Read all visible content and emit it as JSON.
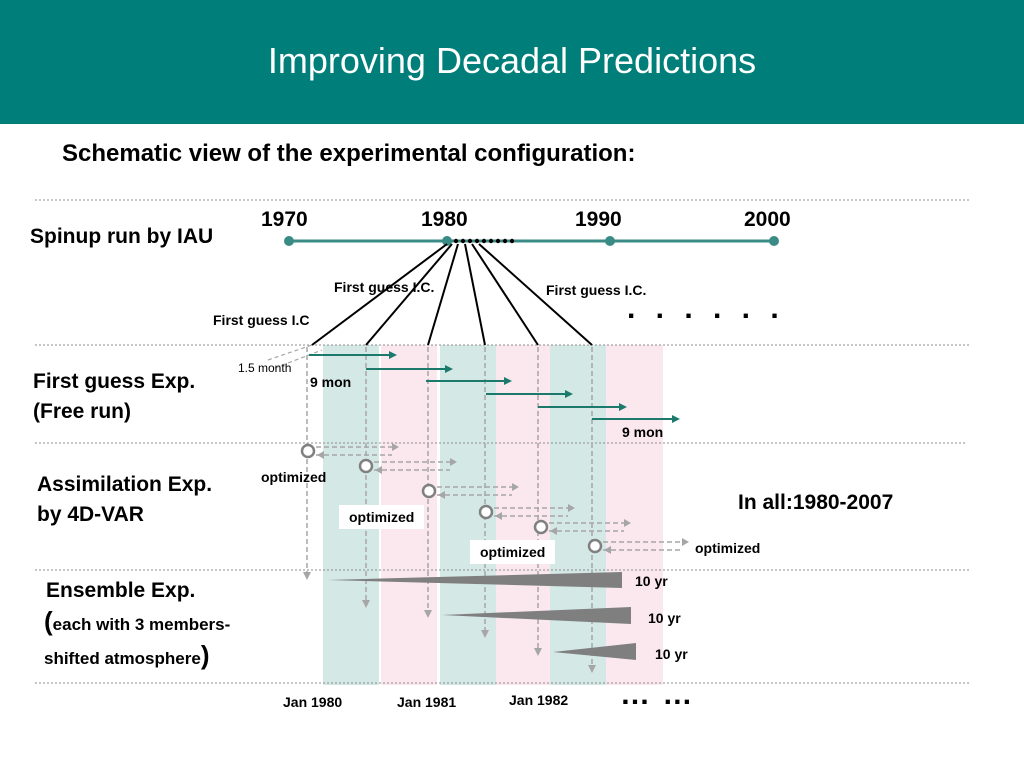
{
  "header": {
    "title": "Improving Decadal Predictions"
  },
  "subtitle": "Schematic view of the experimental configuration:",
  "spinup": {
    "label": "Spinup run by IAU",
    "years": [
      "1970",
      "1980",
      "1990",
      "2000"
    ],
    "first_guess_labels": [
      "First guess I.C.",
      "First guess I.C.",
      "First guess I.C"
    ]
  },
  "rows": {
    "first_guess_line1": "First guess Exp.",
    "first_guess_line2": "(Free run)",
    "assim_line1": "Assimilation Exp.",
    "assim_line2": "by 4D-VAR",
    "ensemble_line1": "Ensemble Exp.",
    "ensemble_line2_open": "(",
    "ensemble_line2": "each with 3 members-",
    "ensemble_line3": "shifted atmosphere",
    "ensemble_line3_close": ")"
  },
  "annotations": {
    "offset": "1.5 month",
    "duration_a": "9 mon",
    "duration_b": "9 mon",
    "optimized": [
      "optimized",
      "optimized",
      "optimized",
      "optimized"
    ],
    "in_all": "In all:1980-2007",
    "ensemble_lengths": [
      "10 yr",
      "10 yr",
      "10 yr"
    ],
    "ellipsis_top": ". . . . . .",
    "ellipsis_bottom": "… …"
  },
  "bottom_labels": [
    "Jan 1980",
    "Jan 1981",
    "Jan 1982"
  ],
  "colors": {
    "header": "#007f7a",
    "teal_band": "#d4e8e6",
    "pink_band": "#fbe8ef",
    "arrow_teal": "#1b7a6b",
    "dashed_gray": "#a6a6a6",
    "wedge_gray": "#7f7f7f"
  }
}
